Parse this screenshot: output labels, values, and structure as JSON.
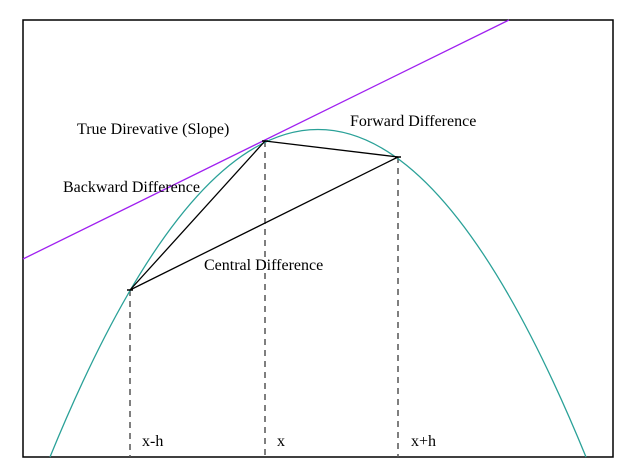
{
  "colors": {
    "curve": "#2aa198",
    "tangent": "#a020f0",
    "secant": "#000000",
    "guide": "#555555",
    "frame": "#000000"
  },
  "annotations": {
    "true_derivative": "True Direvative (Slope)",
    "forward_difference": "Forward Difference",
    "backward_difference": "Backward Difference",
    "central_difference": "Central Difference"
  },
  "axis_labels": {
    "x_minus_h": "x-h",
    "x": "x",
    "x_plus_h": "x+h"
  }
}
